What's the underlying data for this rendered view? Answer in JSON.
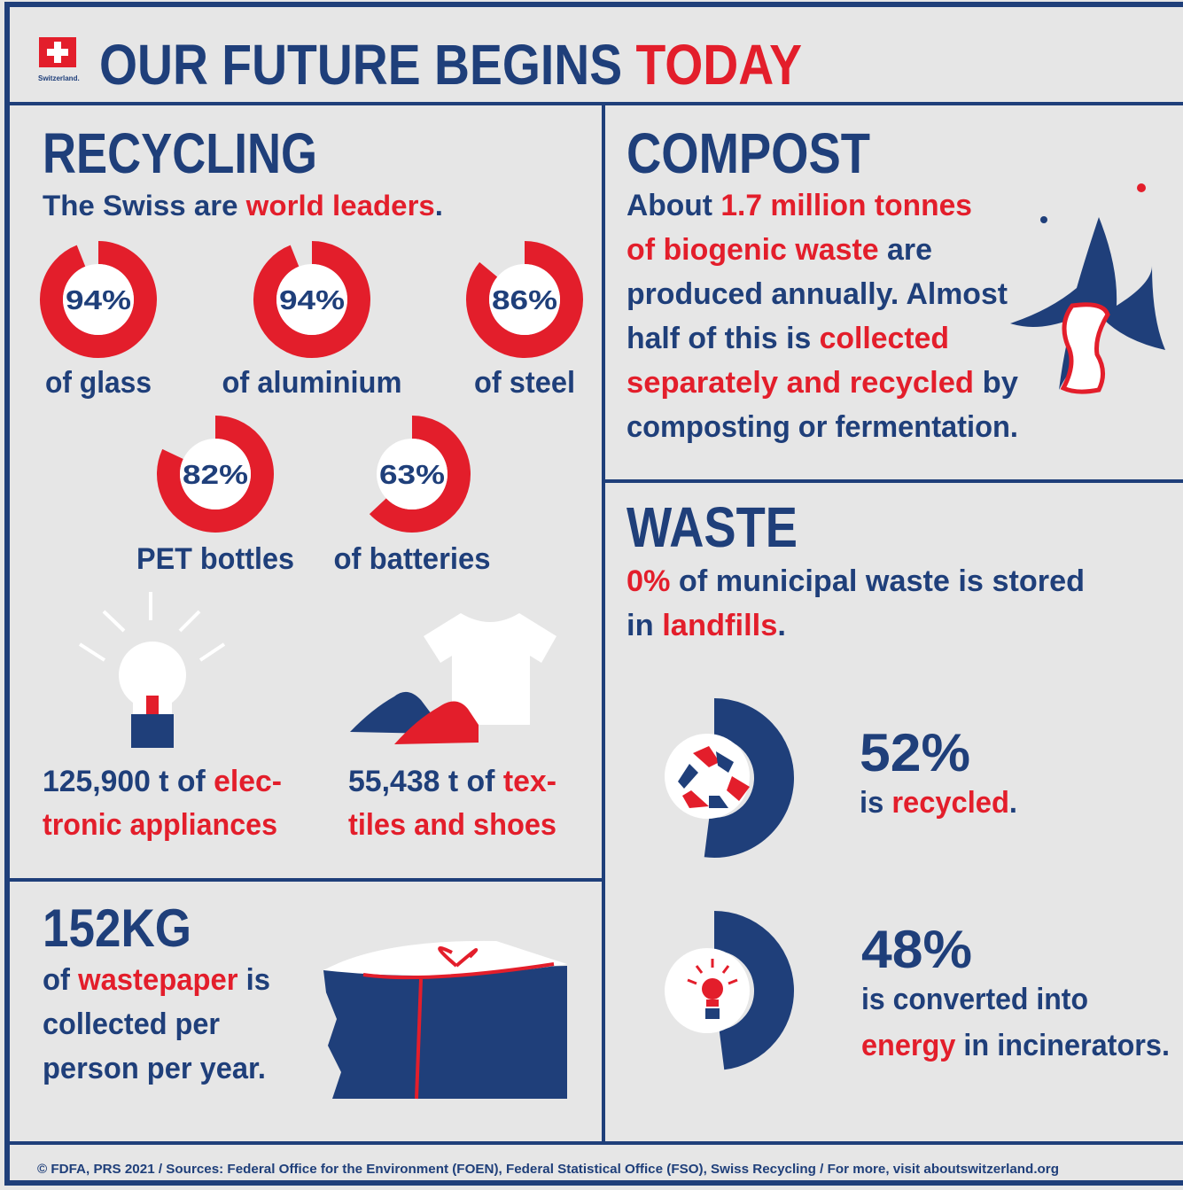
{
  "colors": {
    "navy": "#1f3f7a",
    "red": "#e31e2b",
    "background": "#e6e6e6"
  },
  "header": {
    "badge": "Switzerland.",
    "title": [
      {
        "text": "OUR FUTURE BEGINS ",
        "accent": false
      },
      {
        "text": "TODAY",
        "accent": true
      }
    ]
  },
  "recycling": {
    "heading": "RECYCLING",
    "subtitle": [
      {
        "text": "The Swiss are ",
        "accent": false
      },
      {
        "text": "world leaders",
        "accent": true
      },
      {
        "text": ".",
        "accent": false
      }
    ],
    "rings": [
      {
        "value": 94,
        "label": "94%",
        "caption": "of glass"
      },
      {
        "value": 94,
        "label": "94%",
        "caption": "of aluminium"
      },
      {
        "value": 86,
        "label": "86%",
        "caption": "of steel"
      },
      {
        "value": 82,
        "label": "82%",
        "caption": "PET bottles"
      },
      {
        "value": 63,
        "label": "63%",
        "caption": "of batteries"
      }
    ],
    "items": [
      {
        "lines": [
          [
            {
              "text": "125,900 t of ",
              "accent": false
            },
            {
              "text": "elec-",
              "accent": true
            }
          ],
          [
            {
              "text": "tronic appliances",
              "accent": true
            }
          ]
        ]
      },
      {
        "lines": [
          [
            {
              "text": "55,438 t of ",
              "accent": false
            },
            {
              "text": "tex-",
              "accent": true
            }
          ],
          [
            {
              "text": "tiles and shoes",
              "accent": true
            }
          ]
        ]
      }
    ]
  },
  "paper": {
    "heading": "152KG",
    "lines": [
      [
        {
          "text": "of ",
          "accent": false
        },
        {
          "text": "wastepaper",
          "accent": true
        },
        {
          "text": " is",
          "accent": false
        }
      ],
      [
        {
          "text": "collected per",
          "accent": false
        }
      ],
      [
        {
          "text": "person per year.",
          "accent": false
        }
      ]
    ]
  },
  "compost": {
    "heading": "COMPOST",
    "lines": [
      [
        {
          "text": "About ",
          "accent": false
        },
        {
          "text": "1.7 million tonnes",
          "accent": true
        }
      ],
      [
        {
          "text": "of biogenic waste",
          "accent": true
        },
        {
          "text": " are",
          "accent": false
        }
      ],
      [
        {
          "text": "produced annually. Almost",
          "accent": false
        }
      ],
      [
        {
          "text": "half of this is ",
          "accent": false
        },
        {
          "text": "collected",
          "accent": true
        }
      ],
      [
        {
          "text": "separately and recycled",
          "accent": true
        },
        {
          "text": " by",
          "accent": false
        }
      ],
      [
        {
          "text": "composting or fermentation.",
          "accent": false
        }
      ]
    ]
  },
  "waste": {
    "heading": "WASTE",
    "lines": [
      [
        {
          "text": "0%",
          "accent": true
        },
        {
          "text": " of municipal waste is stored",
          "accent": false
        }
      ],
      [
        {
          "text": "in ",
          "accent": false
        },
        {
          "text": "landfills",
          "accent": true
        },
        {
          "text": ".",
          "accent": false
        }
      ]
    ],
    "stats": [
      {
        "value": 52,
        "label": "52%",
        "lines": [
          [
            {
              "text": "is ",
              "accent": false
            },
            {
              "text": "recycled",
              "accent": true
            },
            {
              "text": ".",
              "accent": false
            }
          ]
        ]
      },
      {
        "value": 48,
        "label": "48%",
        "lines": [
          [
            {
              "text": "is converted into",
              "accent": false
            }
          ],
          [
            {
              "text": "energy",
              "accent": true
            },
            {
              "text": " in incinerators.",
              "accent": false
            }
          ]
        ]
      }
    ]
  },
  "footer": "© FDFA, PRS 2021 / Sources: Federal Office for the Environment (FOEN), Federal Statistical Office (FSO), Swiss Recycling / For more, visit aboutswitzerland.org"
}
